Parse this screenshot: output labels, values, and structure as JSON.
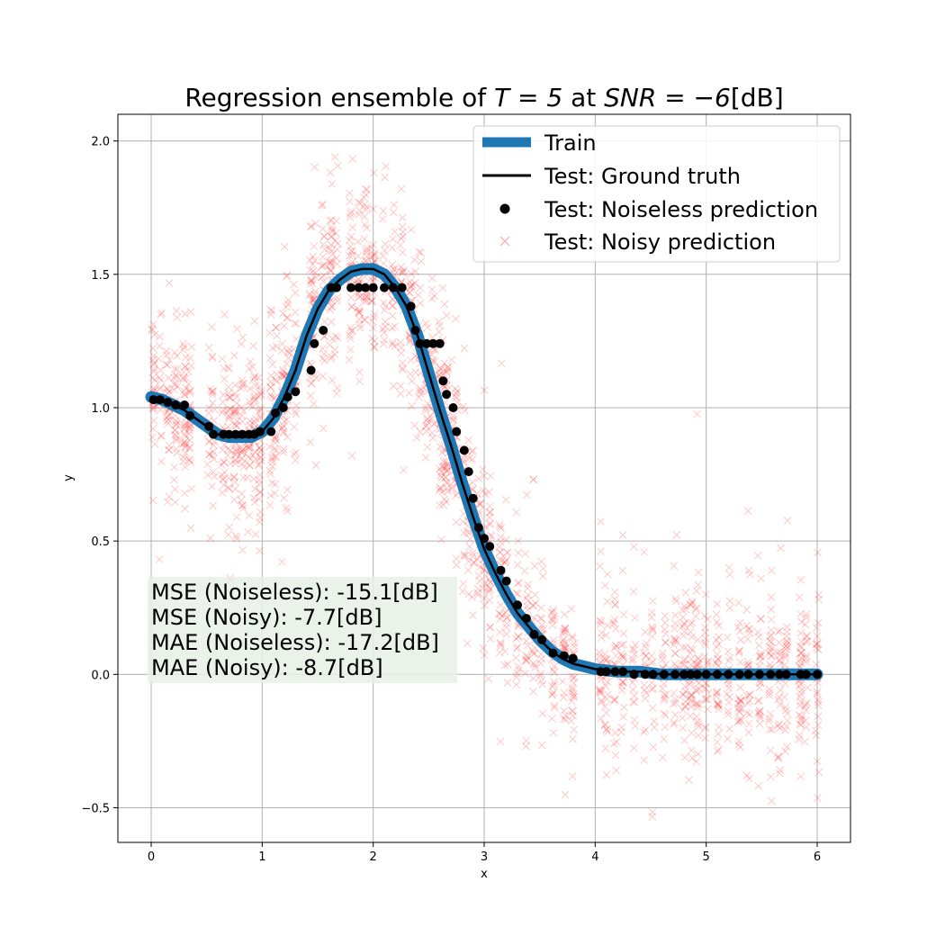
{
  "chart_data": {
    "type": "line",
    "title_prefix": "Regression ensemble of ",
    "title_T": "T = 5",
    "title_mid": " at ",
    "title_snr": "SNR = −6",
    "title_unit": "[dB]",
    "xlabel": "x",
    "ylabel": "y",
    "xlim": [
      -0.3,
      6.3
    ],
    "ylim": [
      -0.63,
      2.1
    ],
    "x_ticks": [
      0,
      1,
      2,
      3,
      4,
      5,
      6
    ],
    "y_ticks": [
      -0.5,
      0.0,
      0.5,
      1.0,
      1.5,
      2.0
    ],
    "x_tick_labels": [
      "0",
      "1",
      "2",
      "3",
      "4",
      "5",
      "6"
    ],
    "y_tick_labels": [
      "−0.5",
      "0.0",
      "0.5",
      "1.0",
      "1.5",
      "2.0"
    ],
    "grid": true,
    "legend_position": "top-right",
    "colors": {
      "train": "#1f77b4",
      "ground_truth": "#000000",
      "noiseless": "#000000",
      "noisy": "#ff0000",
      "metrics_box": "#e6f0e6"
    },
    "series": [
      {
        "name": "Train",
        "style": "thick-line",
        "x": [
          0,
          0.1,
          0.2,
          0.3,
          0.4,
          0.5,
          0.6,
          0.7,
          0.8,
          0.9,
          1.0,
          1.1,
          1.2,
          1.3,
          1.4,
          1.5,
          1.6,
          1.7,
          1.8,
          1.9,
          2.0,
          2.1,
          2.2,
          2.3,
          2.4,
          2.5,
          2.6,
          2.7,
          2.8,
          2.9,
          3.0,
          3.1,
          3.2,
          3.3,
          3.4,
          3.5,
          3.6,
          3.7,
          3.8,
          3.9,
          4.0,
          4.2,
          4.4,
          4.6,
          4.8,
          5.0,
          5.2,
          5.4,
          5.6,
          5.8,
          6.0
        ],
        "y": [
          1.04,
          1.03,
          1.01,
          0.99,
          0.96,
          0.93,
          0.9,
          0.89,
          0.89,
          0.89,
          0.91,
          0.96,
          1.04,
          1.14,
          1.27,
          1.37,
          1.44,
          1.48,
          1.51,
          1.52,
          1.52,
          1.5,
          1.45,
          1.38,
          1.27,
          1.13,
          0.99,
          0.86,
          0.72,
          0.59,
          0.47,
          0.38,
          0.3,
          0.23,
          0.18,
          0.13,
          0.09,
          0.06,
          0.04,
          0.03,
          0.02,
          0.01,
          0.01,
          0.0,
          0.0,
          0.0,
          0.0,
          0.0,
          0.0,
          0.0,
          0.0
        ]
      },
      {
        "name": "Test: Ground truth",
        "style": "line",
        "x": [
          0,
          0.1,
          0.2,
          0.3,
          0.4,
          0.5,
          0.6,
          0.7,
          0.8,
          0.9,
          1.0,
          1.1,
          1.2,
          1.3,
          1.4,
          1.5,
          1.6,
          1.7,
          1.8,
          1.9,
          2.0,
          2.1,
          2.2,
          2.3,
          2.4,
          2.5,
          2.6,
          2.7,
          2.8,
          2.9,
          3.0,
          3.1,
          3.2,
          3.3,
          3.4,
          3.5,
          3.6,
          3.7,
          3.8,
          3.9,
          4.0,
          4.2,
          4.4,
          4.6,
          4.8,
          5.0,
          5.2,
          5.4,
          5.6,
          5.8,
          6.0
        ],
        "y": [
          1.04,
          1.03,
          1.01,
          0.99,
          0.96,
          0.93,
          0.9,
          0.89,
          0.89,
          0.89,
          0.91,
          0.96,
          1.04,
          1.14,
          1.27,
          1.37,
          1.44,
          1.48,
          1.51,
          1.52,
          1.52,
          1.5,
          1.45,
          1.38,
          1.27,
          1.13,
          0.99,
          0.86,
          0.72,
          0.59,
          0.47,
          0.38,
          0.3,
          0.23,
          0.18,
          0.13,
          0.09,
          0.06,
          0.04,
          0.03,
          0.02,
          0.01,
          0.01,
          0.0,
          0.0,
          0.0,
          0.0,
          0.0,
          0.0,
          0.0,
          0.0
        ]
      },
      {
        "name": "Test: Noiseless prediction",
        "style": "markers-dot",
        "x": [
          0.02,
          0.08,
          0.15,
          0.22,
          0.3,
          0.35,
          0.52,
          0.56,
          0.65,
          0.7,
          0.76,
          0.82,
          0.88,
          0.93,
          0.98,
          1.08,
          1.12,
          1.19,
          1.23,
          1.3,
          1.44,
          1.47,
          1.55,
          1.62,
          1.67,
          1.8,
          1.87,
          1.93,
          2.0,
          2.1,
          2.18,
          2.26,
          2.34,
          2.38,
          2.42,
          2.48,
          2.54,
          2.6,
          2.63,
          2.66,
          2.72,
          2.75,
          2.82,
          2.86,
          2.9,
          2.95,
          3.0,
          3.05,
          3.15,
          3.2,
          3.3,
          3.38,
          3.45,
          3.52,
          3.62,
          3.72,
          3.8,
          4.05,
          4.1,
          4.18,
          4.25,
          4.35,
          4.45,
          4.52,
          4.62,
          4.72,
          4.8,
          4.86,
          4.92,
          5.0,
          5.1,
          5.2,
          5.3,
          5.38,
          5.48,
          5.58,
          5.66,
          5.72,
          5.85,
          5.9,
          6.0
        ],
        "y": [
          1.03,
          1.03,
          1.02,
          1.01,
          1.01,
          0.97,
          0.93,
          0.9,
          0.9,
          0.9,
          0.9,
          0.9,
          0.9,
          0.9,
          0.91,
          0.91,
          0.98,
          1.0,
          1.04,
          1.06,
          1.14,
          1.24,
          1.29,
          1.45,
          1.45,
          1.45,
          1.45,
          1.45,
          1.45,
          1.45,
          1.45,
          1.45,
          1.38,
          1.29,
          1.24,
          1.24,
          1.24,
          1.24,
          1.1,
          1.05,
          1.0,
          0.91,
          0.84,
          0.76,
          0.66,
          0.55,
          0.51,
          0.48,
          0.39,
          0.35,
          0.26,
          0.21,
          0.15,
          0.13,
          0.08,
          0.07,
          0.06,
          0.01,
          0.01,
          0.01,
          0.01,
          0.0,
          0.0,
          0.0,
          0.0,
          0.0,
          0.0,
          0.0,
          0.0,
          0.0,
          0.0,
          0.0,
          0.0,
          0.0,
          0.0,
          0.0,
          0.0,
          0.0,
          0.0,
          0.0,
          0.0
        ]
      },
      {
        "name": "Test: Noisy prediction",
        "style": "markers-x",
        "generator": {
          "count": 2200,
          "seed": 17,
          "spread_left": 0.16,
          "spread_right": 0.15,
          "outlier_fraction": 0.12,
          "outlier_spread": 0.3
        }
      }
    ],
    "metrics": [
      "MSE (Noiseless): -15.1[dB]",
      "MSE (Noisy): -7.7[dB]",
      "MAE (Noiseless): -17.2[dB]",
      "MAE (Noisy): -8.7[dB]"
    ]
  }
}
